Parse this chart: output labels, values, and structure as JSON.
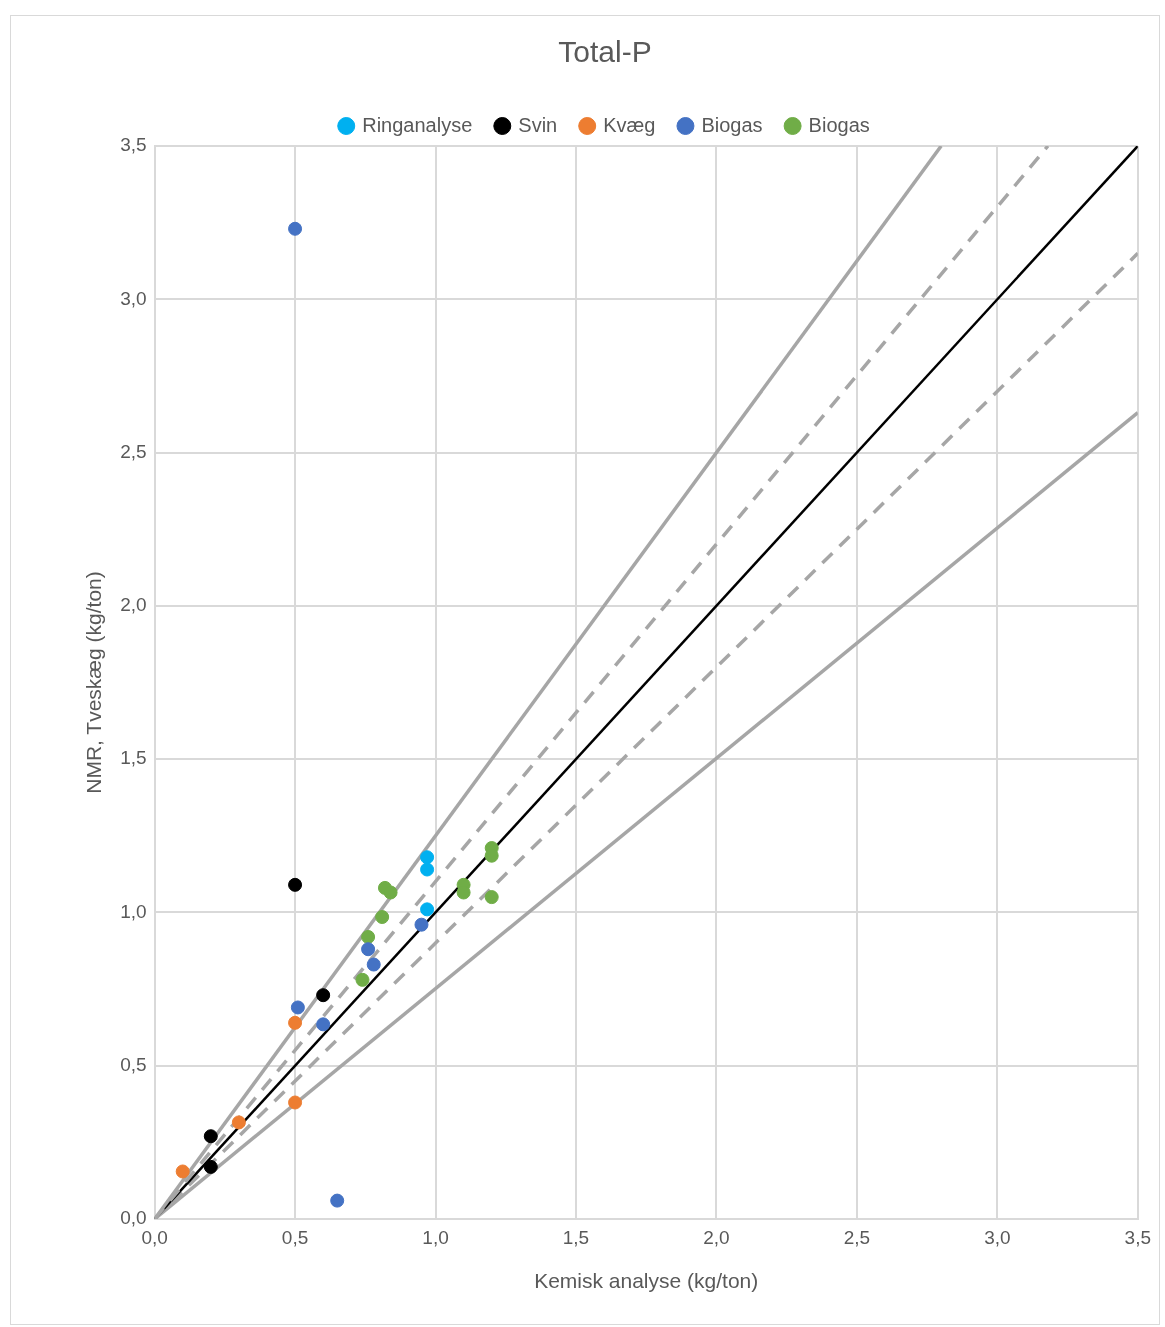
{
  "chart_data": {
    "type": "scatter",
    "title": "Total-P",
    "xlabel": "Kemisk analyse (kg/ton)",
    "ylabel": "NMR, Tveskæg (kg/ton)",
    "xlim": [
      0,
      3.5
    ],
    "ylim": [
      0,
      3.5
    ],
    "xticks": [
      {
        "value": 0,
        "label": "0,0"
      },
      {
        "value": 0.5,
        "label": "0,5"
      },
      {
        "value": 1,
        "label": "1,0"
      },
      {
        "value": 1.5,
        "label": "1,5"
      },
      {
        "value": 2,
        "label": "2,0"
      },
      {
        "value": 2.5,
        "label": "2,5"
      },
      {
        "value": 3,
        "label": "3,0"
      },
      {
        "value": 3.5,
        "label": "3,5"
      }
    ],
    "yticks": [
      {
        "value": 0,
        "label": "0,0"
      },
      {
        "value": 0.5,
        "label": "0,5"
      },
      {
        "value": 1,
        "label": "1,0"
      },
      {
        "value": 1.5,
        "label": "1,5"
      },
      {
        "value": 2,
        "label": "2,0"
      },
      {
        "value": 2.5,
        "label": "2,5"
      },
      {
        "value": 3,
        "label": "3,0"
      },
      {
        "value": 3.5,
        "label": "3,5"
      }
    ],
    "grid": true,
    "legend": "top",
    "marker": "circle",
    "series": [
      {
        "type": "line",
        "marker": "none",
        "color": "#a6a6a6",
        "line_style": "solid",
        "x": [
          0,
          2.8
        ],
        "values": [
          0,
          3.5
        ]
      },
      {
        "type": "line",
        "marker": "none",
        "color": "#a6a6a6",
        "line_style": "dashed",
        "x": [
          0,
          3.18
        ],
        "values": [
          0,
          3.5
        ]
      },
      {
        "type": "line",
        "marker": "none",
        "color": "#000000",
        "line_style": "solid",
        "x": [
          0,
          3.5
        ],
        "values": [
          0,
          3.5
        ]
      },
      {
        "type": "line",
        "marker": "none",
        "color": "#a6a6a6",
        "line_style": "dashed",
        "x": [
          0,
          3.5
        ],
        "values": [
          0,
          3.15
        ]
      },
      {
        "type": "line",
        "marker": "none",
        "color": "#a6a6a6",
        "line_style": "solid",
        "x": [
          0,
          3.5
        ],
        "values": [
          0,
          2.63
        ]
      },
      {
        "name": "Ringanalyse",
        "color": "#00b0f0",
        "x": [
          0.97,
          0.97,
          0.97
        ],
        "values": [
          1.18,
          1.14,
          1.01
        ]
      },
      {
        "name": "Svin",
        "color": "#000000",
        "x": [
          0.5,
          0.6,
          0.2,
          0.2
        ],
        "values": [
          1.09,
          0.73,
          0.27,
          0.17
        ]
      },
      {
        "name": "Kvæg",
        "color": "#ed7d31",
        "x": [
          0.1,
          0.3,
          0.5,
          0.5
        ],
        "values": [
          0.155,
          0.315,
          0.64,
          0.38
        ]
      },
      {
        "name": "Biogas",
        "color": "#4472c4",
        "x": [
          0.5,
          0.51,
          0.6,
          0.76,
          0.78,
          0.95,
          0.65
        ],
        "values": [
          3.23,
          0.69,
          0.635,
          0.88,
          0.83,
          0.96,
          0.06
        ]
      },
      {
        "name": "Biogas",
        "color": "#70ad47",
        "x": [
          0.82,
          0.84,
          0.81,
          0.76,
          0.74,
          1.1,
          1.1,
          1.2,
          1.2,
          1.2
        ],
        "values": [
          1.08,
          1.065,
          0.985,
          0.92,
          0.78,
          1.09,
          1.065,
          1.21,
          1.185,
          1.05
        ]
      }
    ]
  }
}
